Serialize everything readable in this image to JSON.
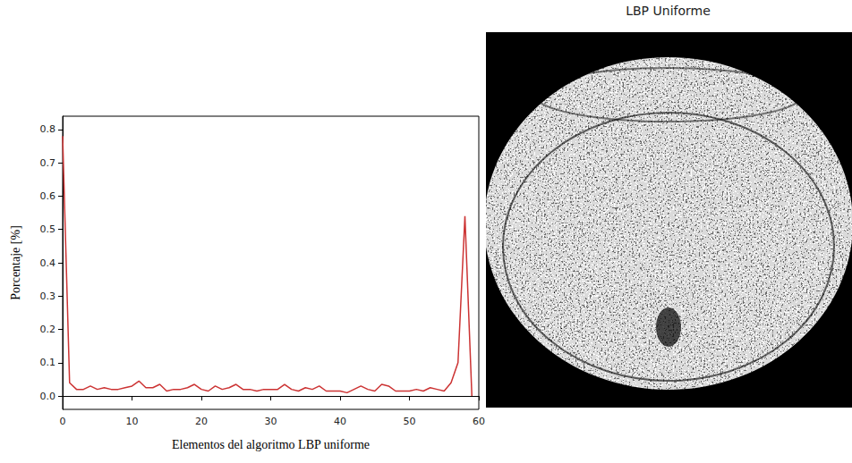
{
  "chart_data": {
    "type": "line",
    "xlabel": "Elementos del algoritmo LBP uniforme",
    "ylabel": "Porcentaje [%]",
    "x": [
      0,
      1,
      2,
      3,
      4,
      5,
      6,
      7,
      8,
      9,
      10,
      11,
      12,
      13,
      14,
      15,
      16,
      17,
      18,
      19,
      20,
      21,
      22,
      23,
      24,
      25,
      26,
      27,
      28,
      29,
      30,
      31,
      32,
      33,
      34,
      35,
      36,
      37,
      38,
      39,
      40,
      41,
      42,
      43,
      44,
      45,
      46,
      47,
      48,
      49,
      50,
      51,
      52,
      53,
      54,
      55,
      56,
      57,
      58,
      59
    ],
    "values": [
      0.78,
      0.04,
      0.02,
      0.02,
      0.03,
      0.02,
      0.025,
      0.02,
      0.02,
      0.025,
      0.03,
      0.045,
      0.025,
      0.025,
      0.035,
      0.015,
      0.02,
      0.02,
      0.025,
      0.035,
      0.02,
      0.015,
      0.03,
      0.02,
      0.025,
      0.035,
      0.02,
      0.02,
      0.015,
      0.02,
      0.02,
      0.02,
      0.035,
      0.02,
      0.015,
      0.025,
      0.02,
      0.03,
      0.015,
      0.015,
      0.015,
      0.01,
      0.02,
      0.03,
      0.02,
      0.015,
      0.035,
      0.03,
      0.015,
      0.015,
      0.015,
      0.02,
      0.015,
      0.025,
      0.02,
      0.015,
      0.04,
      0.1,
      0.54,
      0.0
    ],
    "color": "#cc3333",
    "xlim": [
      0,
      60
    ],
    "xticks": [
      0,
      10,
      20,
      30,
      40,
      50,
      60
    ],
    "ylim": [
      -0.04,
      0.84
    ],
    "yticks": [
      {
        "value": 0,
        "label": "0.0"
      },
      0.1,
      0.2,
      0.3,
      0.4,
      0.5,
      0.6,
      0.7,
      0.8
    ],
    "grid": false
  },
  "image": {
    "title": "LBP Uniforme"
  }
}
